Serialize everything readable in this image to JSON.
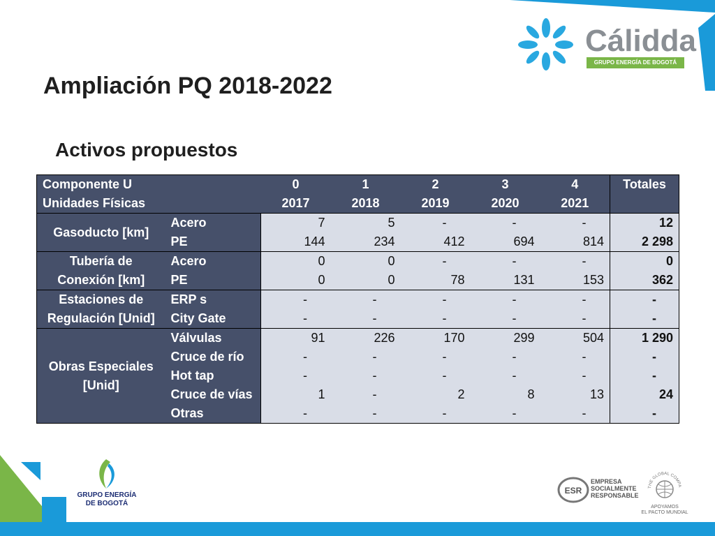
{
  "page": {
    "title": "Ampliación PQ 2018-2022",
    "subtitle": "Activos propuestos"
  },
  "table": {
    "header_row1": [
      "Componente U",
      "0",
      "1",
      "2",
      "3",
      "4",
      "Totales"
    ],
    "header_row2": [
      "Unidades Físicas",
      "2017",
      "2018",
      "2019",
      "2020",
      "2021"
    ],
    "groups": [
      {
        "category": "Gasoducto [km]",
        "rows": [
          {
            "label": "Acero",
            "values": [
              "7",
              "5",
              "-",
              "-",
              "-"
            ],
            "total": "12"
          },
          {
            "label": "PE",
            "values": [
              "144",
              "234",
              "412",
              "694",
              "814"
            ],
            "total": "2 298"
          }
        ]
      },
      {
        "category": "Tubería de Conexión [km]",
        "rows": [
          {
            "label": "Acero",
            "values": [
              "0",
              "0",
              "-",
              "-",
              "-"
            ],
            "total": "0"
          },
          {
            "label": "PE",
            "values": [
              "0",
              "0",
              "78",
              "131",
              "153"
            ],
            "total": "362"
          }
        ]
      },
      {
        "category": "Estaciones de Regulación [Unid]",
        "rows": [
          {
            "label": "ERP s",
            "values": [
              "-",
              "-",
              "-",
              "-",
              "-"
            ],
            "total": "-"
          },
          {
            "label": "City Gate",
            "values": [
              "-",
              "-",
              "-",
              "-",
              "-"
            ],
            "total": "-"
          }
        ]
      },
      {
        "category": "Obras Especiales [Unid]",
        "rows": [
          {
            "label": "Válvulas",
            "values": [
              "91",
              "226",
              "170",
              "299",
              "504"
            ],
            "total": "1 290"
          },
          {
            "label": "Cruce de río",
            "values": [
              "-",
              "-",
              "-",
              "-",
              "-"
            ],
            "total": "-"
          },
          {
            "label": "Hot tap",
            "values": [
              "-",
              "-",
              "-",
              "-",
              "-"
            ],
            "total": "-"
          },
          {
            "label": "Cruce de vías",
            "values": [
              "1",
              "-",
              "2",
              "8",
              "13"
            ],
            "total": "24"
          },
          {
            "label": "Otras",
            "values": [
              "-",
              "-",
              "-",
              "-",
              "-"
            ],
            "total": "-"
          }
        ]
      }
    ]
  },
  "logos": {
    "calidda_name": "Cálidda",
    "calidda_tagline": "GRUPO ENERGÍA DE BOGOTÁ",
    "geb_line1": "GRUPO ENERGÍA",
    "geb_line2": "DE BOGOTÁ",
    "esr_line1": "EMPRESA",
    "esr_line2": "SOCIALMENTE",
    "esr_line3": "RESPONSABLE",
    "esr_badge": "ESR",
    "pacto_line1": "APOYAMOS",
    "pacto_line2": "EL PACTO MUNDIAL",
    "pacto_ring": "THE GLOBAL COMPACT"
  },
  "colors": {
    "header_fill": "#46506a",
    "cell_fill": "#d9dde7",
    "accent_blue": "#1a9ad9",
    "accent_green": "#7ab648"
  },
  "icons": [
    "calidda-flower-icon",
    "geb-logo-icon",
    "esr-logo-icon",
    "global-compact-icon"
  ]
}
